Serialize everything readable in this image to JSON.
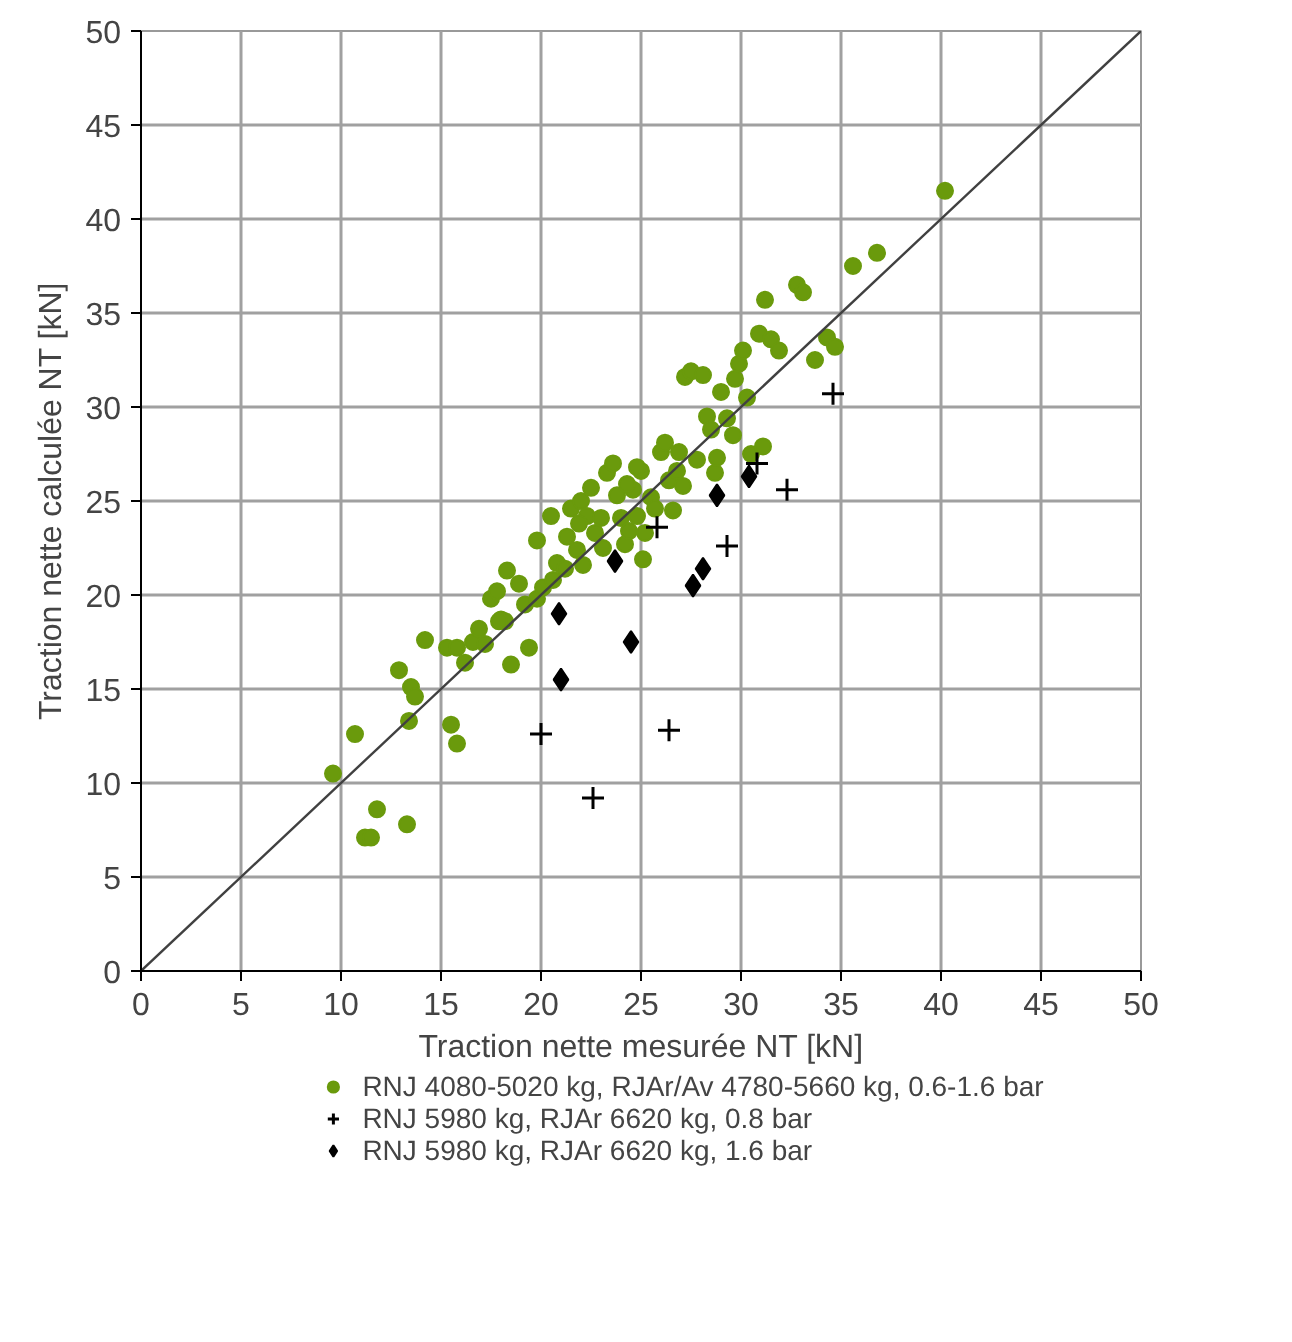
{
  "chart_data": {
    "type": "scatter",
    "xlabel": "Traction nette mesurée NT [kN]",
    "ylabel": "Traction nette calculée NT [kN]",
    "xlim": [
      0,
      50
    ],
    "ylim": [
      0,
      50
    ],
    "xticks": [
      0,
      5,
      10,
      15,
      20,
      25,
      30,
      35,
      40,
      45,
      50
    ],
    "yticks": [
      0,
      5,
      10,
      15,
      20,
      25,
      30,
      35,
      40,
      45,
      50
    ],
    "grid": true,
    "legend": "bottom",
    "series": [
      {
        "name": "RNJ 4080-5020 kg, RJAr/Av 4780-5660 kg, 0.6-1.6 bar",
        "color": "#6a9a0c",
        "marker": "circle",
        "x": [
          9.6,
          10.7,
          11.2,
          11.5,
          11.8,
          13.3,
          12.9,
          13.5,
          13.4,
          13.7,
          14.2,
          15.5,
          15.8,
          15.3,
          15.8,
          16.2,
          16.6,
          16.9,
          17.2,
          17.5,
          17.8,
          18,
          18.3,
          18.2,
          18.5,
          18.9,
          19.2,
          19.4,
          19.8,
          20.1,
          19.8,
          20.5,
          20.8,
          21.2,
          21.3,
          21.5,
          21.8,
          22,
          22.3,
          22.5,
          22.7,
          23,
          23.3,
          23.6,
          23.8,
          24,
          24.2,
          24.4,
          24.6,
          24.8,
          25,
          25.2,
          25.5,
          25.7,
          26,
          26.2,
          26.4,
          26.6,
          26.9,
          27.2,
          27.5,
          27.8,
          28.1,
          28.3,
          28.5,
          28.7,
          29,
          29.3,
          29.6,
          29.9,
          30.1,
          30.3,
          30.5,
          30.9,
          31.2,
          31.5,
          31.9,
          32.8,
          33.1,
          33.7,
          34.3,
          34.7,
          35.6,
          36.8,
          40.2,
          22.1,
          23.1,
          24.3,
          25.1,
          27.1,
          28.8,
          31.1,
          21.9,
          17.9,
          20.6,
          24.8,
          26.8,
          29.7
        ],
        "values": [
          10.5,
          12.6,
          7.1,
          7.1,
          8.6,
          7.8,
          16,
          15.1,
          13.3,
          14.6,
          17.6,
          13.1,
          12.1,
          17.2,
          17.2,
          16.4,
          17.5,
          18.2,
          17.4,
          19.8,
          20.2,
          18.7,
          21.3,
          18.6,
          16.3,
          20.6,
          19.5,
          17.2,
          19.8,
          20.4,
          22.9,
          24.2,
          21.7,
          21.4,
          23.1,
          24.6,
          22.4,
          25,
          24.2,
          25.7,
          23.3,
          24.1,
          26.5,
          27,
          25.3,
          24.1,
          22.7,
          23.4,
          25.6,
          24.2,
          26.6,
          23.3,
          25.2,
          24.6,
          27.6,
          28.1,
          26.1,
          24.5,
          27.6,
          31.6,
          31.9,
          27.2,
          31.7,
          29.5,
          28.8,
          26.5,
          30.8,
          29.4,
          28.5,
          32.3,
          33,
          30.5,
          27.5,
          33.9,
          35.7,
          33.6,
          33,
          36.5,
          36.1,
          32.5,
          33.7,
          33.2,
          37.5,
          38.2,
          41.5,
          21.6,
          22.5,
          25.9,
          21.9,
          25.8,
          27.3,
          27.9,
          23.8,
          18.6,
          20.8,
          26.8,
          26.6,
          31.5
        ]
      },
      {
        "name": "RNJ 5980 kg, RJAr 6620 kg, 0.8 bar",
        "color": "#000000",
        "marker": "cross",
        "x": [
          20,
          22.6,
          25.8,
          26.4,
          29.3,
          30.8,
          32.3,
          34.6
        ],
        "values": [
          12.6,
          9.2,
          23.6,
          12.8,
          22.6,
          27,
          25.6,
          30.7
        ]
      },
      {
        "name": "RNJ 5980 kg, RJAr 6620 kg, 1.6 bar",
        "color": "#000000",
        "marker": "diamond",
        "x": [
          20.9,
          21,
          23.7,
          24.5,
          27.6,
          28.1,
          28.8,
          30.4
        ],
        "values": [
          19,
          15.5,
          21.8,
          17.5,
          20.5,
          21.4,
          25.3,
          26.3
        ]
      },
      {
        "type": "line",
        "color": "#404040",
        "marker": "none",
        "x": [
          0,
          50
        ],
        "values": [
          0,
          50
        ]
      }
    ]
  }
}
